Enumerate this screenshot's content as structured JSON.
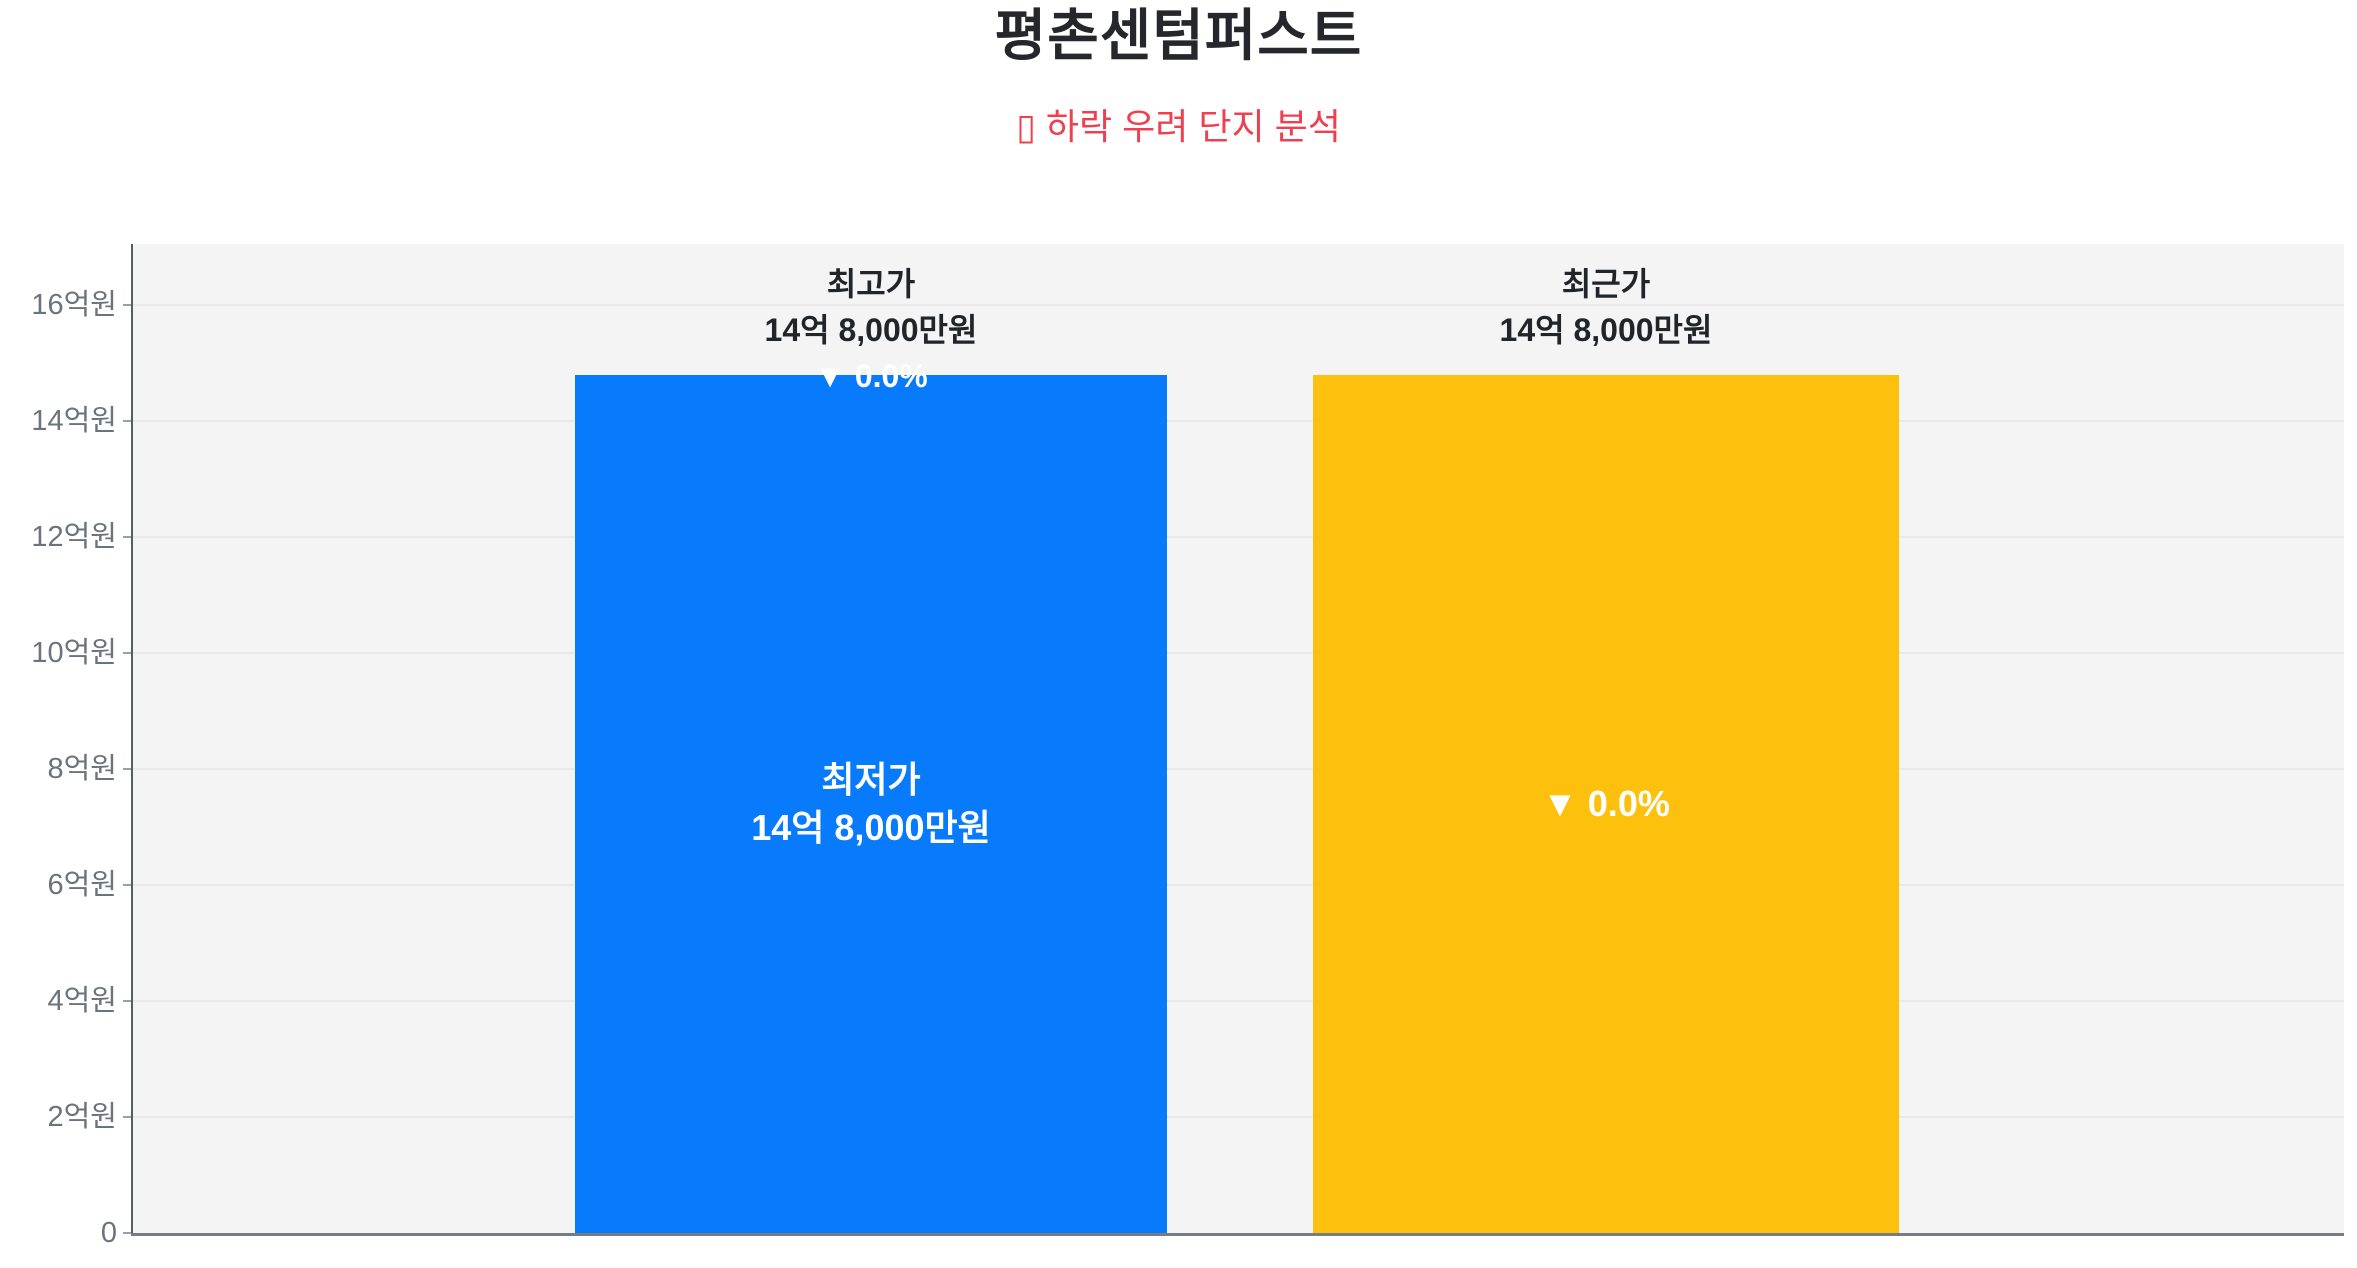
{
  "header": {
    "title": "평촌센텀퍼스트",
    "subtitle": "▯ 하락 우려 단지 분석",
    "subtitle_color": "#ee4050"
  },
  "chart_data": {
    "type": "bar",
    "title": "평촌센텀퍼스트",
    "subtitle": "▯ 하락 우려 단지 분석",
    "unit": "억원",
    "ylim": [
      0,
      17.05
    ],
    "grid": true,
    "legend": "none",
    "yticks": [
      {
        "value": 16,
        "label": "16억원"
      },
      {
        "value": 14,
        "label": "14억원"
      },
      {
        "value": 12,
        "label": "12억원"
      },
      {
        "value": 10,
        "label": "10억원"
      },
      {
        "value": 8,
        "label": "8억원"
      },
      {
        "value": 6,
        "label": "6억원"
      },
      {
        "value": 4,
        "label": "4억원"
      },
      {
        "value": 2,
        "label": "2억원"
      },
      {
        "value": 0,
        "label": "0"
      }
    ],
    "bars": [
      {
        "id": "highest-price",
        "label": "최고가",
        "price_label": "14억 8,000만원",
        "value_eok": 14.8,
        "change_label": "▼ 0.0%",
        "change_position": "bar-top",
        "inner_labels": [
          "최저가",
          "14억 8,000만원"
        ],
        "color": "#087bfc"
      },
      {
        "id": "recent-price",
        "label": "최근가",
        "price_label": "14억 8,000만원",
        "value_eok": 14.8,
        "change_label": "▼ 0.0%",
        "change_position": "bar-middle",
        "inner_labels": [],
        "color": "#fdc10d"
      }
    ],
    "colors": {
      "plot_bg": "#f4f4f5",
      "gridline": "#e9e9eb",
      "axis_y": "#565d66",
      "axis_x": "#767c83",
      "tick_label": "#6b737e",
      "annotation_text": "#212529",
      "bar_inner_text": "#ffffff",
      "bar_highest": "#087bfc",
      "bar_recent": "#fdc10d"
    }
  }
}
